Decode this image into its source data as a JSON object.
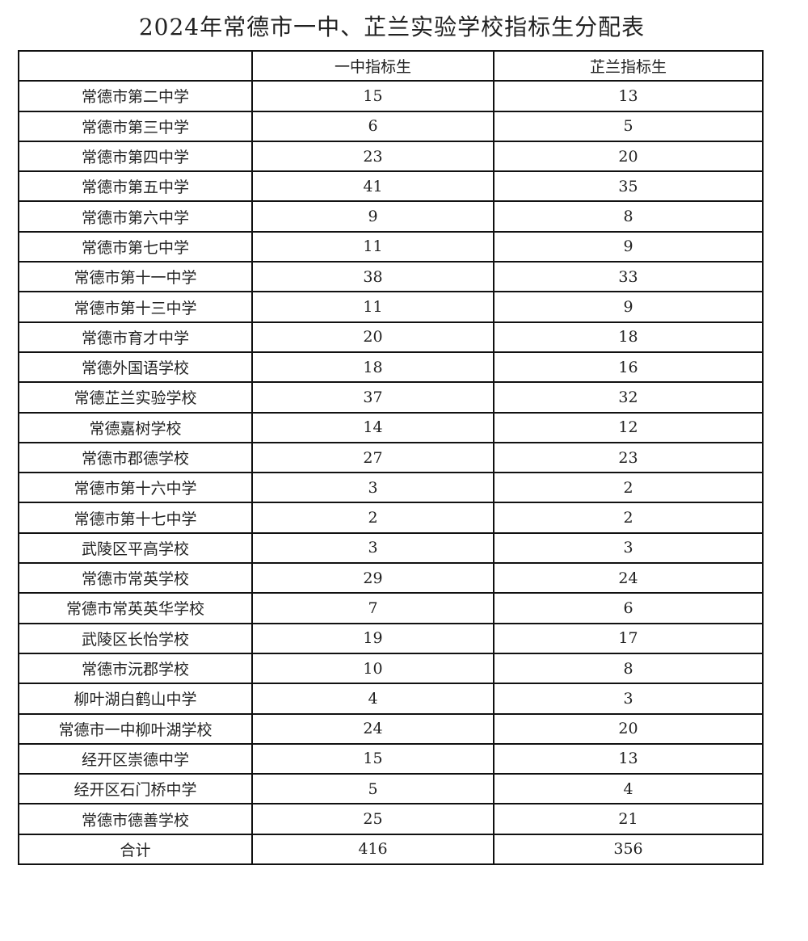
{
  "title": "2024年常德市一中、芷兰实验学校指标生分配表",
  "table": {
    "headers": [
      "",
      "一中指标生",
      "芷兰指标生"
    ],
    "rows": [
      [
        "常德市第二中学",
        "15",
        "13"
      ],
      [
        "常德市第三中学",
        "6",
        "5"
      ],
      [
        "常德市第四中学",
        "23",
        "20"
      ],
      [
        "常德市第五中学",
        "41",
        "35"
      ],
      [
        "常德市第六中学",
        "9",
        "8"
      ],
      [
        "常德市第七中学",
        "11",
        "9"
      ],
      [
        "常德市第十一中学",
        "38",
        "33"
      ],
      [
        "常德市第十三中学",
        "11",
        "9"
      ],
      [
        "常德市育才中学",
        "20",
        "18"
      ],
      [
        "常德外国语学校",
        "18",
        "16"
      ],
      [
        "常德芷兰实验学校",
        "37",
        "32"
      ],
      [
        "常德嘉树学校",
        "14",
        "12"
      ],
      [
        "常德市郡德学校",
        "27",
        "23"
      ],
      [
        "常德市第十六中学",
        "3",
        "2"
      ],
      [
        "常德市第十七中学",
        "2",
        "2"
      ],
      [
        "武陵区平高学校",
        "3",
        "3"
      ],
      [
        "常德市常英学校",
        "29",
        "24"
      ],
      [
        "常德市常英英华学校",
        "7",
        "6"
      ],
      [
        "武陵区长怡学校",
        "19",
        "17"
      ],
      [
        "常德市沅郡学校",
        "10",
        "8"
      ],
      [
        "柳叶湖白鹤山中学",
        "4",
        "3"
      ],
      [
        "常德市一中柳叶湖学校",
        "24",
        "20"
      ],
      [
        "经开区崇德中学",
        "15",
        "13"
      ],
      [
        "经开区石门桥中学",
        "5",
        "4"
      ],
      [
        "常德市德善学校",
        "25",
        "21"
      ]
    ],
    "total": [
      "合计",
      "416",
      "356"
    ]
  }
}
